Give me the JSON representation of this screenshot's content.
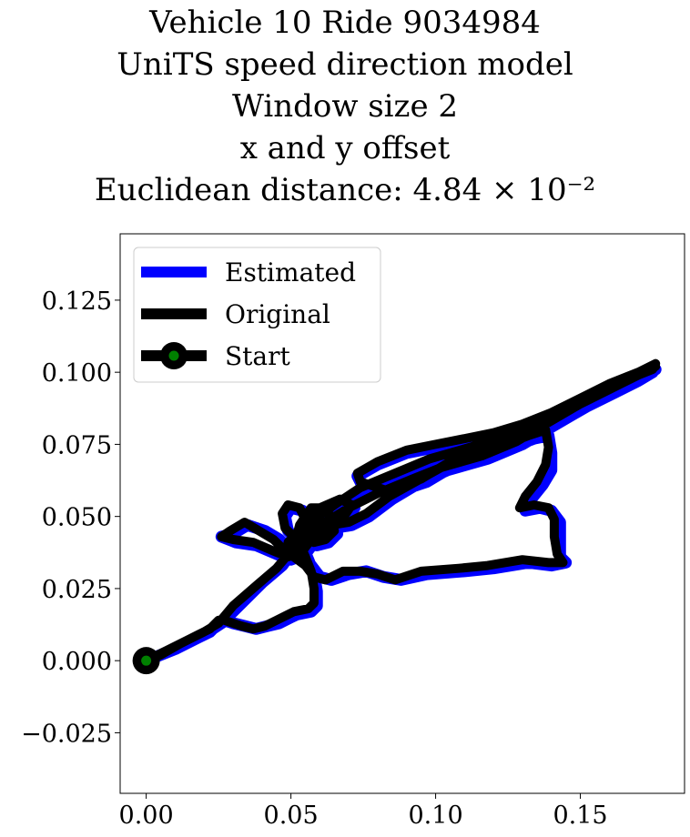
{
  "title_lines": [
    "Vehicle 10 Ride 9034984",
    "UniTS speed direction model",
    "Window size 2",
    "x and y offset",
    "Euclidean distance: 4.84 × 10⁻²"
  ],
  "chart_data": {
    "type": "line",
    "xlim": [
      -0.009,
      0.186
    ],
    "ylim": [
      -0.046,
      0.148
    ],
    "x_ticks": [
      0.0,
      0.05,
      0.1,
      0.15
    ],
    "x_tick_labels": [
      "0.00",
      "0.05",
      "0.10",
      "0.15"
    ],
    "y_ticks": [
      -0.025,
      0.0,
      0.025,
      0.05,
      0.075,
      0.1,
      0.125
    ],
    "y_tick_labels": [
      "−0.025",
      "0.000",
      "0.025",
      "0.050",
      "0.075",
      "0.100",
      "0.125"
    ],
    "grid": false,
    "legend_position": "top-left",
    "series": [
      {
        "name": "Estimated",
        "color": "#0000ff",
        "points": [
          [
            0.0,
            0.0
          ],
          [
            0.01,
            0.004
          ],
          [
            0.02,
            0.009
          ],
          [
            0.026,
            0.013
          ],
          [
            0.032,
            0.019
          ],
          [
            0.04,
            0.027
          ],
          [
            0.047,
            0.033
          ],
          [
            0.052,
            0.04
          ],
          [
            0.057,
            0.045
          ],
          [
            0.065,
            0.05
          ],
          [
            0.072,
            0.055
          ],
          [
            0.083,
            0.06
          ],
          [
            0.095,
            0.064
          ],
          [
            0.105,
            0.068
          ],
          [
            0.115,
            0.072
          ],
          [
            0.125,
            0.077
          ],
          [
            0.135,
            0.081
          ],
          [
            0.145,
            0.085
          ],
          [
            0.155,
            0.091
          ],
          [
            0.165,
            0.096
          ],
          [
            0.172,
            0.099
          ],
          [
            0.176,
            0.101
          ],
          [
            0.17,
            0.099
          ],
          [
            0.16,
            0.095
          ],
          [
            0.15,
            0.09
          ],
          [
            0.14,
            0.085
          ],
          [
            0.13,
            0.081
          ],
          [
            0.12,
            0.078
          ],
          [
            0.11,
            0.076
          ],
          [
            0.1,
            0.074
          ],
          [
            0.09,
            0.072
          ],
          [
            0.08,
            0.068
          ],
          [
            0.073,
            0.064
          ],
          [
            0.075,
            0.06
          ],
          [
            0.085,
            0.058
          ],
          [
            0.097,
            0.062
          ],
          [
            0.107,
            0.068
          ],
          [
            0.117,
            0.072
          ],
          [
            0.126,
            0.074
          ],
          [
            0.134,
            0.077
          ],
          [
            0.139,
            0.078
          ],
          [
            0.14,
            0.072
          ],
          [
            0.14,
            0.066
          ],
          [
            0.137,
            0.061
          ],
          [
            0.133,
            0.056
          ],
          [
            0.131,
            0.052
          ],
          [
            0.136,
            0.053
          ],
          [
            0.14,
            0.052
          ],
          [
            0.143,
            0.048
          ],
          [
            0.143,
            0.042
          ],
          [
            0.143,
            0.036
          ],
          [
            0.145,
            0.034
          ],
          [
            0.14,
            0.033
          ],
          [
            0.132,
            0.034
          ],
          [
            0.12,
            0.032
          ],
          [
            0.11,
            0.031
          ],
          [
            0.097,
            0.03
          ],
          [
            0.088,
            0.028
          ],
          [
            0.082,
            0.029
          ],
          [
            0.076,
            0.031
          ],
          [
            0.07,
            0.03
          ],
          [
            0.064,
            0.028
          ],
          [
            0.06,
            0.029
          ],
          [
            0.057,
            0.033
          ],
          [
            0.053,
            0.036
          ],
          [
            0.049,
            0.039
          ],
          [
            0.046,
            0.042
          ],
          [
            0.041,
            0.045
          ],
          [
            0.035,
            0.047
          ],
          [
            0.03,
            0.044
          ],
          [
            0.026,
            0.043
          ],
          [
            0.031,
            0.041
          ],
          [
            0.038,
            0.04
          ],
          [
            0.045,
            0.037
          ],
          [
            0.05,
            0.035
          ],
          [
            0.055,
            0.037
          ],
          [
            0.058,
            0.041
          ],
          [
            0.062,
            0.044
          ],
          [
            0.065,
            0.046
          ],
          [
            0.071,
            0.047
          ],
          [
            0.077,
            0.05
          ],
          [
            0.085,
            0.056
          ],
          [
            0.095,
            0.062
          ],
          [
            0.104,
            0.066
          ],
          [
            0.118,
            0.07
          ],
          [
            0.13,
            0.075
          ],
          [
            0.14,
            0.081
          ],
          [
            0.152,
            0.088
          ],
          [
            0.162,
            0.093
          ],
          [
            0.17,
            0.097
          ],
          [
            0.175,
            0.1
          ],
          [
            0.174,
            0.101
          ],
          [
            0.166,
            0.097
          ],
          [
            0.156,
            0.092
          ],
          [
            0.146,
            0.087
          ],
          [
            0.136,
            0.082
          ],
          [
            0.124,
            0.077
          ],
          [
            0.112,
            0.073
          ],
          [
            0.098,
            0.069
          ],
          [
            0.086,
            0.064
          ],
          [
            0.074,
            0.059
          ],
          [
            0.065,
            0.053
          ],
          [
            0.058,
            0.048
          ],
          [
            0.053,
            0.043
          ],
          [
            0.05,
            0.04
          ],
          [
            0.055,
            0.04
          ],
          [
            0.059,
            0.042
          ],
          [
            0.063,
            0.044
          ],
          [
            0.066,
            0.047
          ],
          [
            0.07,
            0.05
          ],
          [
            0.072,
            0.053
          ],
          [
            0.068,
            0.055
          ],
          [
            0.061,
            0.052
          ],
          [
            0.056,
            0.047
          ],
          [
            0.052,
            0.042
          ],
          [
            0.049,
            0.045
          ],
          [
            0.048,
            0.05
          ],
          [
            0.05,
            0.053
          ],
          [
            0.054,
            0.052
          ],
          [
            0.056,
            0.048
          ],
          [
            0.056,
            0.044
          ],
          [
            0.059,
            0.04
          ],
          [
            0.063,
            0.041
          ],
          [
            0.066,
            0.044
          ],
          [
            0.065,
            0.049
          ],
          [
            0.062,
            0.052
          ],
          [
            0.058,
            0.052
          ],
          [
            0.054,
            0.046
          ],
          [
            0.053,
            0.042
          ],
          [
            0.056,
            0.035
          ],
          [
            0.058,
            0.03
          ],
          [
            0.059,
            0.024
          ],
          [
            0.059,
            0.019
          ],
          [
            0.057,
            0.017
          ],
          [
            0.052,
            0.016
          ],
          [
            0.05,
            0.015
          ],
          [
            0.046,
            0.013
          ],
          [
            0.042,
            0.012
          ],
          [
            0.038,
            0.011
          ],
          [
            0.034,
            0.012
          ],
          [
            0.03,
            0.013
          ],
          [
            0.027,
            0.014
          ],
          [
            0.025,
            0.013
          ],
          [
            0.022,
            0.01
          ],
          [
            0.018,
            0.008
          ],
          [
            0.012,
            0.005
          ],
          [
            0.005,
            0.002
          ],
          [
            0.0,
            0.0
          ]
        ]
      },
      {
        "name": "Original",
        "color": "#000000",
        "points": [
          [
            0.0,
            0.0
          ],
          [
            0.01,
            0.005
          ],
          [
            0.02,
            0.01
          ],
          [
            0.025,
            0.013
          ],
          [
            0.03,
            0.019
          ],
          [
            0.038,
            0.026
          ],
          [
            0.045,
            0.032
          ],
          [
            0.05,
            0.038
          ],
          [
            0.055,
            0.043
          ],
          [
            0.062,
            0.048
          ],
          [
            0.07,
            0.053
          ],
          [
            0.08,
            0.058
          ],
          [
            0.092,
            0.063
          ],
          [
            0.102,
            0.067
          ],
          [
            0.112,
            0.071
          ],
          [
            0.122,
            0.076
          ],
          [
            0.132,
            0.08
          ],
          [
            0.142,
            0.085
          ],
          [
            0.152,
            0.09
          ],
          [
            0.162,
            0.095
          ],
          [
            0.17,
            0.099
          ],
          [
            0.175,
            0.101
          ],
          [
            0.176,
            0.103
          ],
          [
            0.17,
            0.1
          ],
          [
            0.16,
            0.096
          ],
          [
            0.15,
            0.091
          ],
          [
            0.14,
            0.086
          ],
          [
            0.13,
            0.082
          ],
          [
            0.12,
            0.079
          ],
          [
            0.11,
            0.077
          ],
          [
            0.1,
            0.075
          ],
          [
            0.09,
            0.073
          ],
          [
            0.08,
            0.069
          ],
          [
            0.073,
            0.065
          ],
          [
            0.074,
            0.062
          ],
          [
            0.083,
            0.059
          ],
          [
            0.095,
            0.063
          ],
          [
            0.105,
            0.069
          ],
          [
            0.115,
            0.073
          ],
          [
            0.124,
            0.075
          ],
          [
            0.132,
            0.078
          ],
          [
            0.138,
            0.08
          ],
          [
            0.139,
            0.074
          ],
          [
            0.138,
            0.068
          ],
          [
            0.135,
            0.062
          ],
          [
            0.131,
            0.057
          ],
          [
            0.129,
            0.053
          ],
          [
            0.134,
            0.054
          ],
          [
            0.139,
            0.053
          ],
          [
            0.141,
            0.049
          ],
          [
            0.141,
            0.043
          ],
          [
            0.142,
            0.037
          ],
          [
            0.144,
            0.034
          ],
          [
            0.139,
            0.034
          ],
          [
            0.13,
            0.035
          ],
          [
            0.118,
            0.033
          ],
          [
            0.108,
            0.032
          ],
          [
            0.095,
            0.031
          ],
          [
            0.086,
            0.028
          ],
          [
            0.08,
            0.03
          ],
          [
            0.074,
            0.031
          ],
          [
            0.068,
            0.031
          ],
          [
            0.062,
            0.028
          ],
          [
            0.058,
            0.029
          ],
          [
            0.055,
            0.033
          ],
          [
            0.051,
            0.036
          ],
          [
            0.047,
            0.039
          ],
          [
            0.044,
            0.042
          ],
          [
            0.039,
            0.045
          ],
          [
            0.034,
            0.048
          ],
          [
            0.029,
            0.045
          ],
          [
            0.026,
            0.043
          ],
          [
            0.03,
            0.042
          ],
          [
            0.037,
            0.041
          ],
          [
            0.044,
            0.038
          ],
          [
            0.049,
            0.036
          ],
          [
            0.054,
            0.038
          ],
          [
            0.057,
            0.042
          ],
          [
            0.061,
            0.045
          ],
          [
            0.064,
            0.047
          ],
          [
            0.07,
            0.048
          ],
          [
            0.076,
            0.051
          ],
          [
            0.084,
            0.057
          ],
          [
            0.093,
            0.062
          ],
          [
            0.102,
            0.067
          ],
          [
            0.116,
            0.071
          ],
          [
            0.128,
            0.076
          ],
          [
            0.138,
            0.082
          ],
          [
            0.15,
            0.089
          ],
          [
            0.16,
            0.094
          ],
          [
            0.168,
            0.098
          ],
          [
            0.174,
            0.101
          ],
          [
            0.176,
            0.102
          ],
          [
            0.166,
            0.098
          ],
          [
            0.156,
            0.093
          ],
          [
            0.146,
            0.088
          ],
          [
            0.136,
            0.083
          ],
          [
            0.124,
            0.078
          ],
          [
            0.112,
            0.074
          ],
          [
            0.098,
            0.07
          ],
          [
            0.086,
            0.065
          ],
          [
            0.074,
            0.06
          ],
          [
            0.065,
            0.054
          ],
          [
            0.058,
            0.049
          ],
          [
            0.052,
            0.044
          ],
          [
            0.049,
            0.041
          ],
          [
            0.054,
            0.041
          ],
          [
            0.058,
            0.043
          ],
          [
            0.062,
            0.045
          ],
          [
            0.065,
            0.048
          ],
          [
            0.069,
            0.051
          ],
          [
            0.071,
            0.054
          ],
          [
            0.067,
            0.056
          ],
          [
            0.06,
            0.053
          ],
          [
            0.055,
            0.048
          ],
          [
            0.051,
            0.043
          ],
          [
            0.048,
            0.046
          ],
          [
            0.047,
            0.051
          ],
          [
            0.049,
            0.054
          ],
          [
            0.053,
            0.053
          ],
          [
            0.055,
            0.049
          ],
          [
            0.055,
            0.045
          ],
          [
            0.058,
            0.041
          ],
          [
            0.062,
            0.042
          ],
          [
            0.065,
            0.045
          ],
          [
            0.064,
            0.05
          ],
          [
            0.061,
            0.053
          ],
          [
            0.057,
            0.053
          ],
          [
            0.053,
            0.047
          ],
          [
            0.052,
            0.043
          ],
          [
            0.055,
            0.036
          ],
          [
            0.057,
            0.031
          ],
          [
            0.058,
            0.025
          ],
          [
            0.058,
            0.02
          ],
          [
            0.056,
            0.018
          ],
          [
            0.051,
            0.017
          ],
          [
            0.049,
            0.016
          ],
          [
            0.045,
            0.014
          ],
          [
            0.041,
            0.012
          ],
          [
            0.037,
            0.011
          ],
          [
            0.033,
            0.012
          ],
          [
            0.03,
            0.013
          ],
          [
            0.027,
            0.014
          ],
          [
            0.025,
            0.014
          ],
          [
            0.022,
            0.011
          ],
          [
            0.018,
            0.009
          ],
          [
            0.012,
            0.006
          ],
          [
            0.005,
            0.002
          ],
          [
            0.0,
            0.0
          ]
        ]
      }
    ],
    "start": {
      "name": "Start",
      "x": 0.0,
      "y": 0.0,
      "outer_color": "#000000",
      "inner_color": "#008000"
    }
  }
}
